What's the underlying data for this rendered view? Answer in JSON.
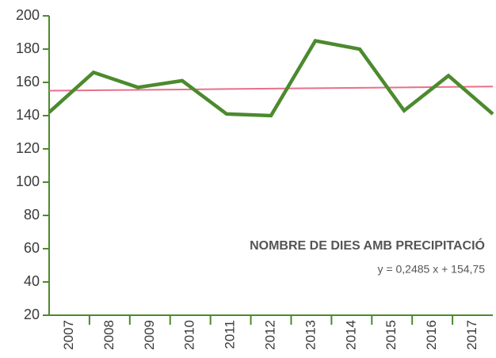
{
  "chart_data": {
    "type": "line",
    "categories": [
      "2007",
      "2008",
      "2009",
      "2010",
      "2011",
      "2012",
      "2013",
      "2014",
      "2015",
      "2016",
      "2017"
    ],
    "series": [
      {
        "name": "NOMBRE DE DIES AMB PRECIPITACIÓ",
        "color": "#4b8a2e",
        "values": [
          142,
          166,
          157,
          161,
          141,
          140,
          185,
          180,
          143,
          164,
          141
        ]
      },
      {
        "name": "y = 0,2485 x + 154,75",
        "color": "#e8708a",
        "values": [
          155.0,
          155.25,
          155.5,
          155.74,
          155.99,
          156.24,
          156.49,
          156.74,
          156.99,
          157.24,
          157.48
        ]
      }
    ],
    "ylim": [
      20,
      200
    ],
    "yticks": [
      20,
      40,
      60,
      80,
      100,
      120,
      140,
      160,
      180,
      200
    ]
  }
}
